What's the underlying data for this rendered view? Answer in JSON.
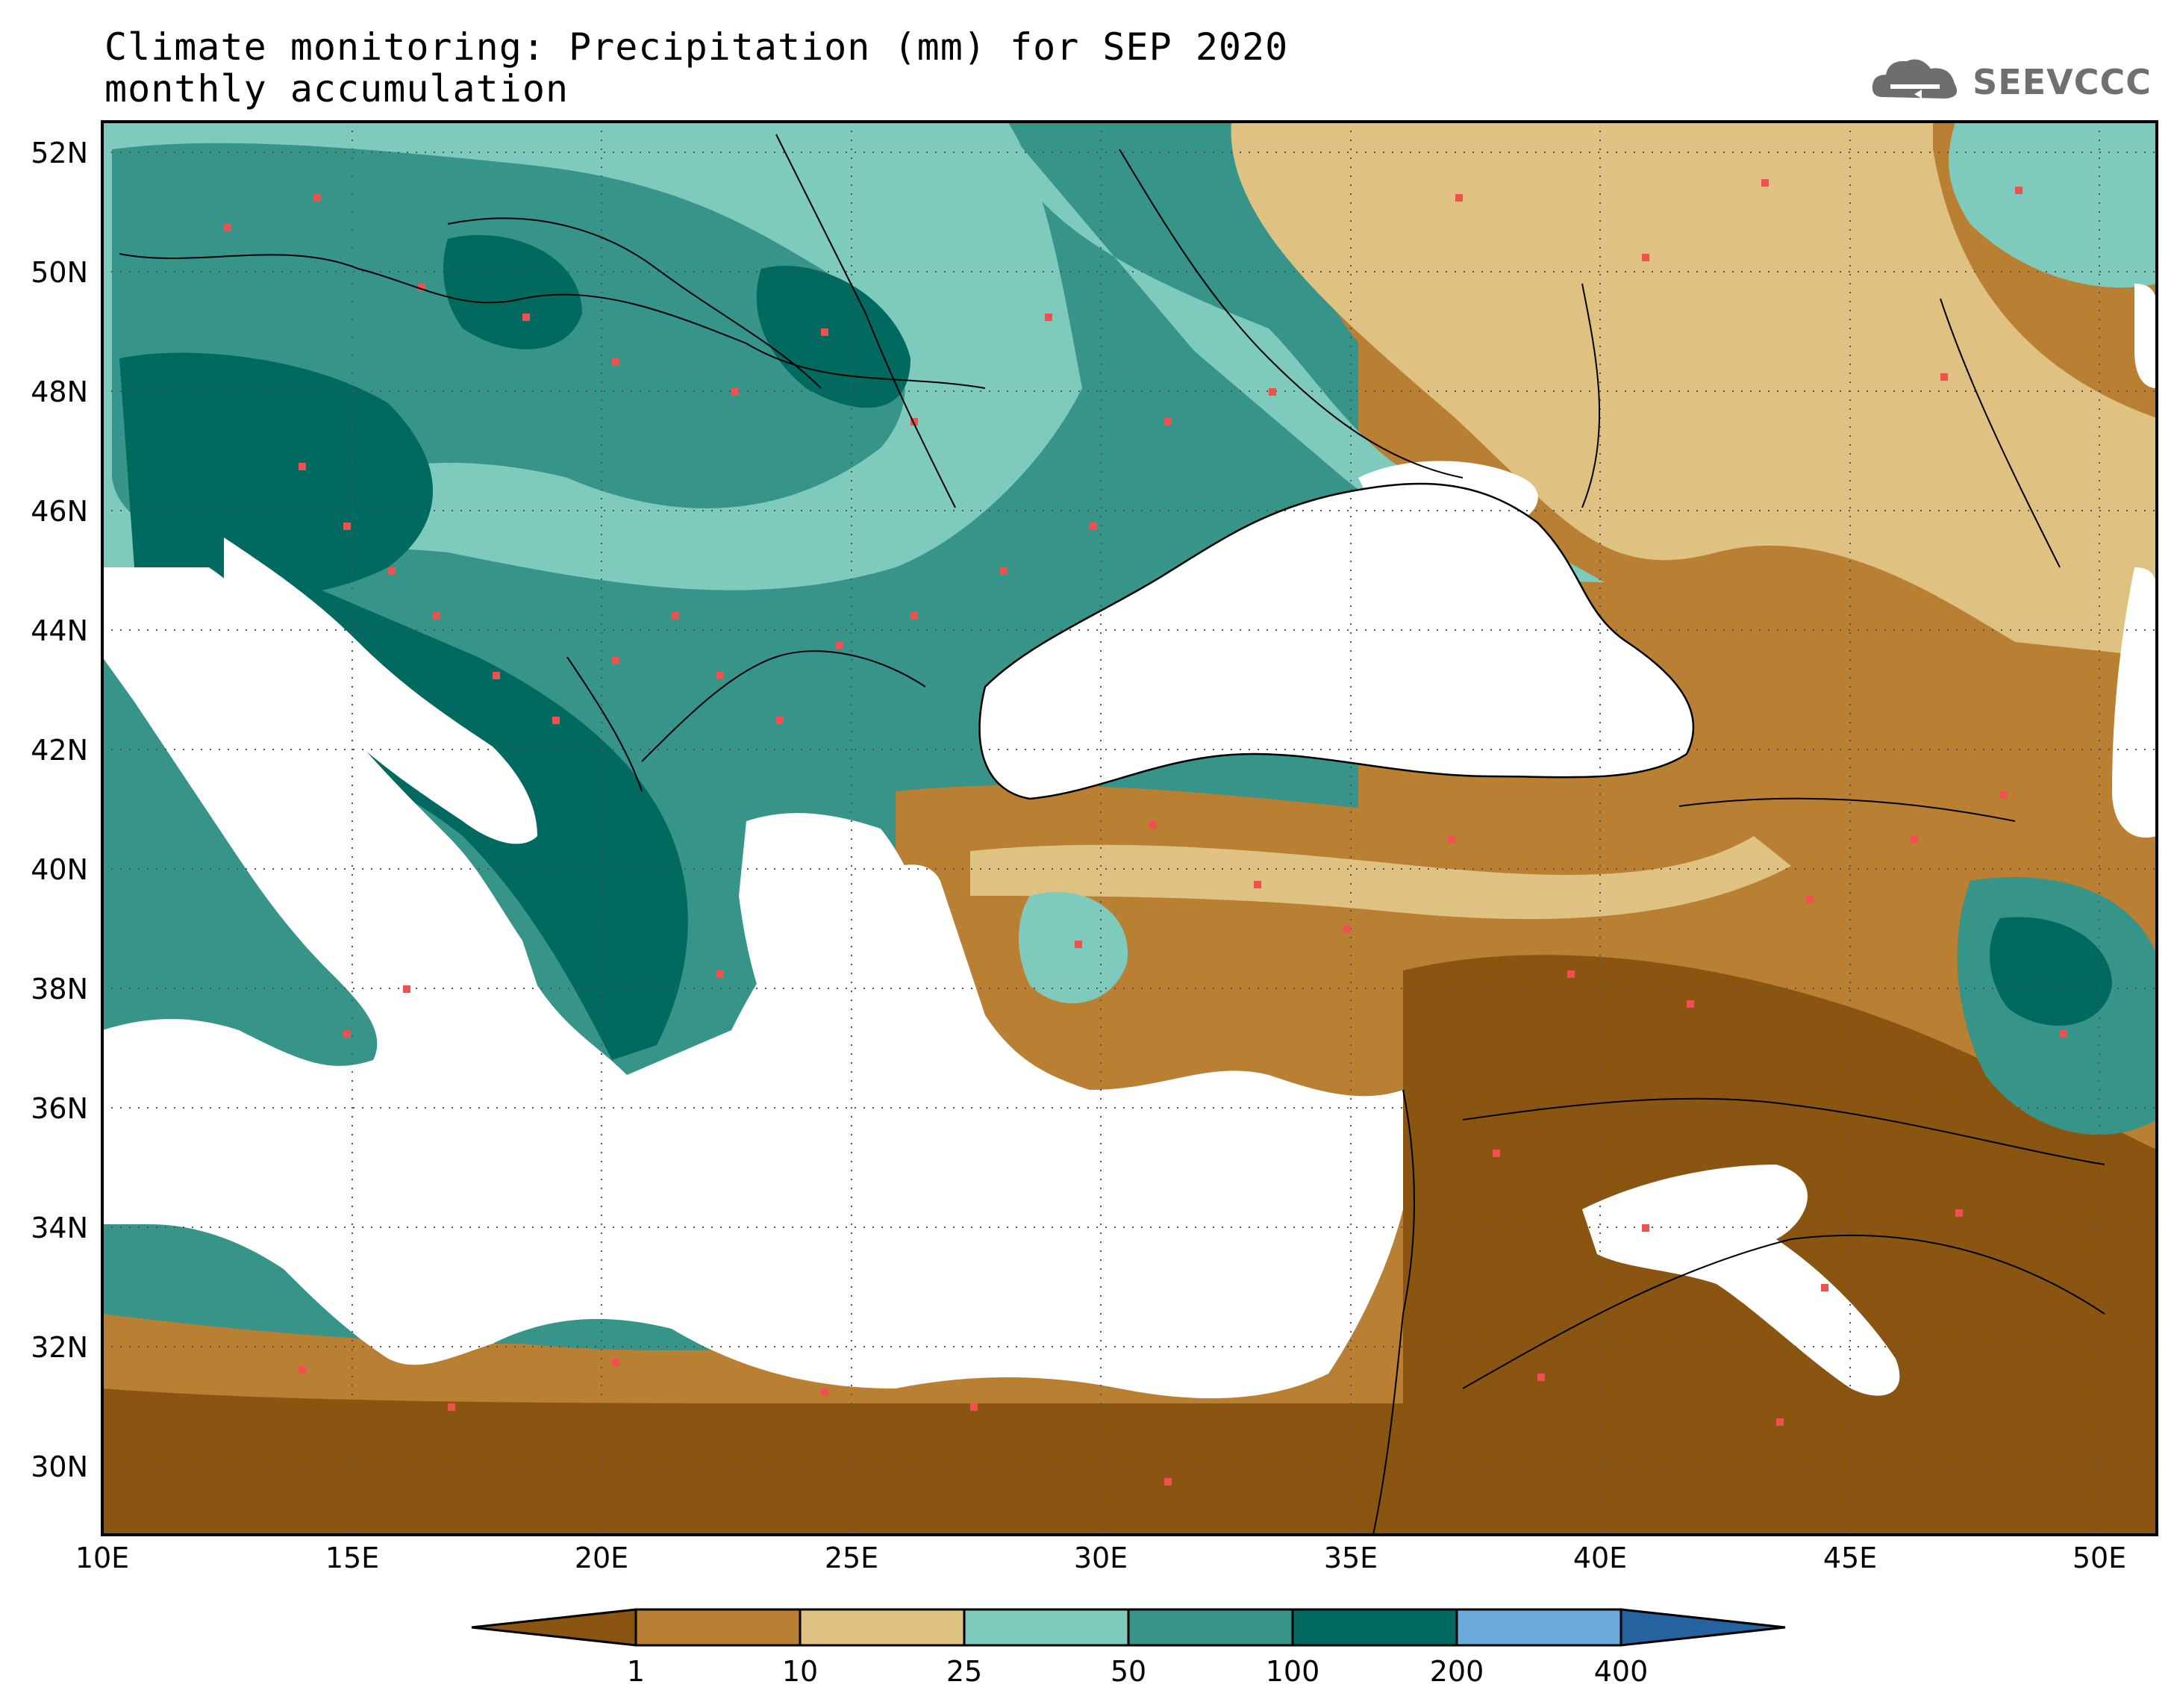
{
  "title": {
    "line1": "Climate monitoring: Precipitation (mm) for SEP 2020",
    "line2": "monthly accumulation"
  },
  "logo": {
    "text": "SEEVCCC",
    "icon": "cloud-icon"
  },
  "axes": {
    "lon_ticks": [
      "10E",
      "15E",
      "20E",
      "25E",
      "30E",
      "35E",
      "40E",
      "45E",
      "50E"
    ],
    "lat_ticks": [
      "52N",
      "50N",
      "48N",
      "46N",
      "44N",
      "42N",
      "40N",
      "38N",
      "36N",
      "34N",
      "32N",
      "30N"
    ]
  },
  "legend": {
    "labels": [
      "1",
      "10",
      "25",
      "50",
      "100",
      "200",
      "400"
    ],
    "colors": [
      "#8a5510",
      "#b97f32",
      "#dfc282",
      "#7ecbbe",
      "#379489",
      "#006a60",
      "#6aaad8",
      "#2462a0"
    ]
  },
  "colors": {
    "station": "#f05050",
    "land_white": "#ffffff"
  }
}
